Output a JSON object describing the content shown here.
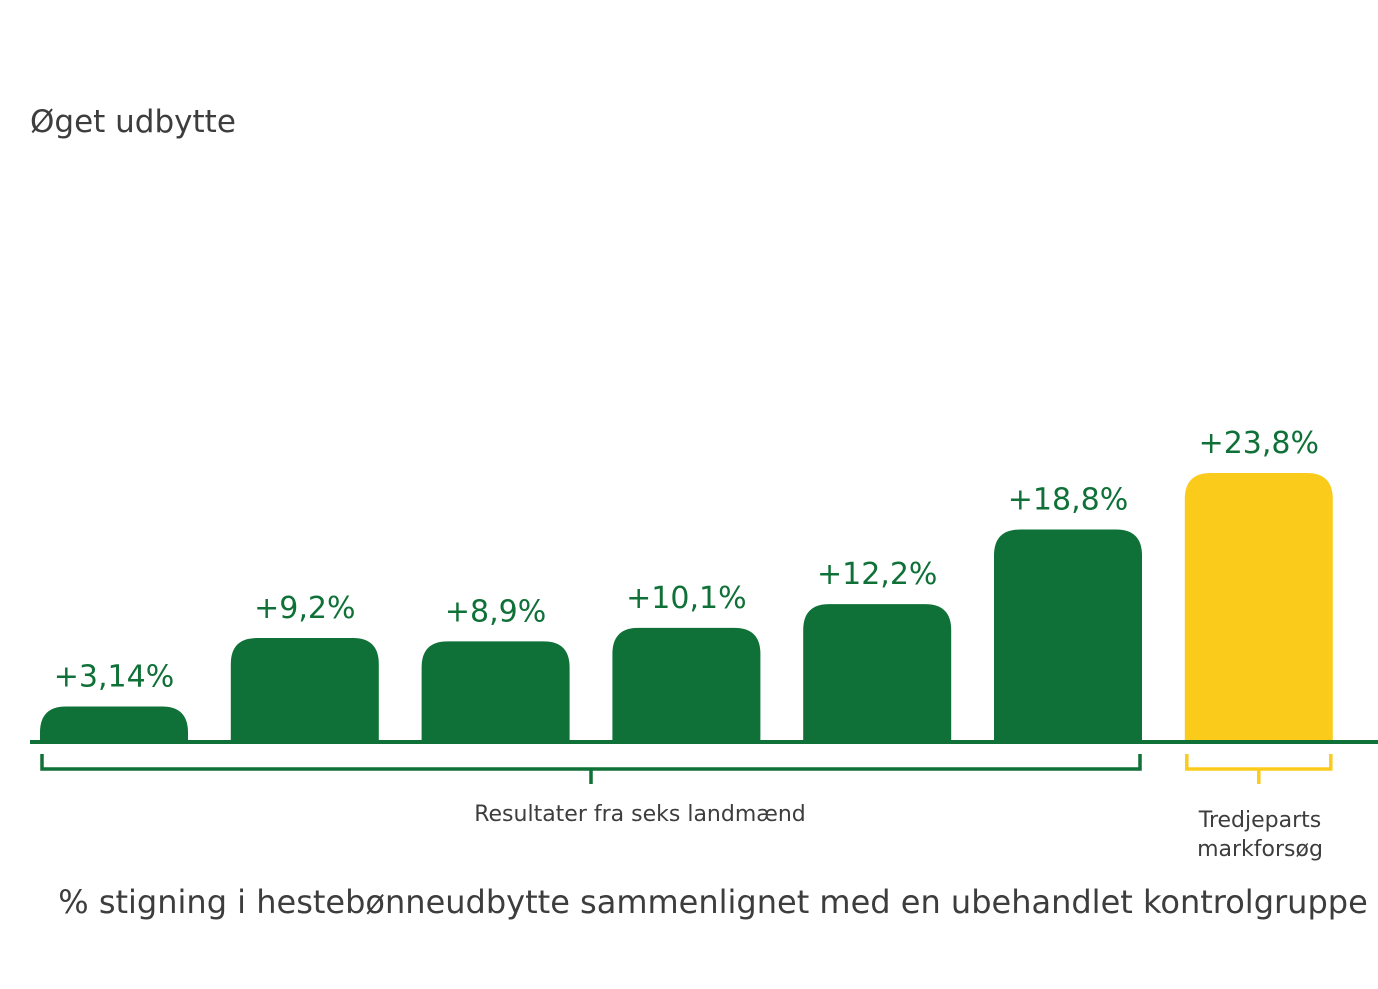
{
  "colors": {
    "farmer_bar": "#0f7137",
    "trial_bar": "#fbcb1c",
    "text": "#3d3d3d",
    "value_label": "#0f7137",
    "baseline": "#0f7137",
    "bracket_farmers": "#0f7137",
    "bracket_trial": "#fbcb1c"
  },
  "chart_data": {
    "type": "bar",
    "title": "Øget udbytte",
    "xlabel": "% stigning i hestebønneudbytte sammenlignet med en ubehandlet kontrolgruppe",
    "ylabel": "",
    "ylim": [
      0,
      28
    ],
    "values": [
      3.14,
      9.2,
      8.9,
      10.1,
      12.2,
      18.8,
      23.8
    ],
    "value_labels": [
      "+3,14%",
      "+9,2%",
      "+8,9%",
      "+10,1%",
      "+12,2%",
      "+18,8%",
      "+23,8%"
    ],
    "groups": [
      {
        "label": "Resultater fra seks landmænd",
        "bars": [
          0,
          1,
          2,
          3,
          4,
          5
        ]
      },
      {
        "label": "Tredjeparts markforsøg",
        "bars": [
          6
        ]
      }
    ],
    "grid": false,
    "legend": "none"
  }
}
